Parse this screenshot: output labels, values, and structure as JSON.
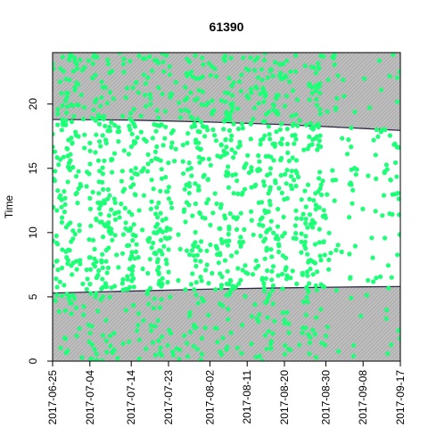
{
  "chart_data": {
    "type": "scatter",
    "title": "61390",
    "ylabel": "Time",
    "xlabel": "",
    "x_type": "date",
    "x_range": [
      "2017-06-25",
      "2017-09-17"
    ],
    "ylim": [
      0,
      24
    ],
    "x_tick_labels": [
      "2017-06-25",
      "2017-07-04",
      "2017-07-14",
      "2017-07-23",
      "2017-08-02",
      "2017-08-11",
      "2017-08-20",
      "2017-08-30",
      "2017-09-08",
      "2017-09-17"
    ],
    "y_tick_labels": [
      "0",
      "5",
      "10",
      "15",
      "20"
    ],
    "colors": {
      "points": "#1EFF78",
      "night": "#BEBEBE",
      "night_hatch": "#9a9a9a",
      "curve": "#2E2A4A"
    },
    "sunrise_curve": [
      {
        "x": "2017-06-25",
        "y": 5.3
      },
      {
        "x": "2017-07-14",
        "y": 5.45
      },
      {
        "x": "2017-08-02",
        "y": 5.6
      },
      {
        "x": "2017-08-20",
        "y": 5.7
      },
      {
        "x": "2017-09-08",
        "y": 5.78
      },
      {
        "x": "2017-09-17",
        "y": 5.8
      }
    ],
    "sunset_curve": [
      {
        "x": "2017-06-25",
        "y": 18.8
      },
      {
        "x": "2017-07-14",
        "y": 18.75
      },
      {
        "x": "2017-08-02",
        "y": 18.6
      },
      {
        "x": "2017-08-20",
        "y": 18.4
      },
      {
        "x": "2017-09-08",
        "y": 18.1
      },
      {
        "x": "2017-09-17",
        "y": 17.95
      }
    ],
    "density_profile": [
      0.5,
      0.7,
      0.9,
      1.0,
      1.0,
      0.9,
      0.8,
      0.5,
      0.6,
      0.8,
      1.0,
      1.0,
      1.0,
      1.0,
      0.8,
      0.5,
      0.6,
      0.7,
      0.9,
      0.9,
      0.6,
      0.4,
      0.6,
      0.9,
      0.9,
      1.0,
      1.0,
      0.8,
      0.6,
      0.5,
      0.4,
      0.5,
      0.6,
      0.7,
      0.9,
      1.0,
      0.8,
      0.6,
      0.5,
      0.6,
      0.8,
      1.0,
      1.0,
      0.9,
      0.8,
      0.6,
      0.5,
      0.4,
      0.6,
      0.8,
      0.9,
      1.0,
      1.0,
      1.0,
      0.9,
      0.8,
      0.9,
      0.7,
      0.5,
      0.4,
      0.6,
      0.8,
      0.9,
      0.9,
      0.8,
      0.6,
      0.5,
      0.4,
      0.3,
      0.3,
      0.2,
      0.3,
      0.4,
      0.2,
      0.2,
      0.1,
      0.15,
      0.2,
      0.25,
      0.3,
      0.35,
      0.3,
      0.4,
      0.5
    ],
    "point_count": 1400
  }
}
